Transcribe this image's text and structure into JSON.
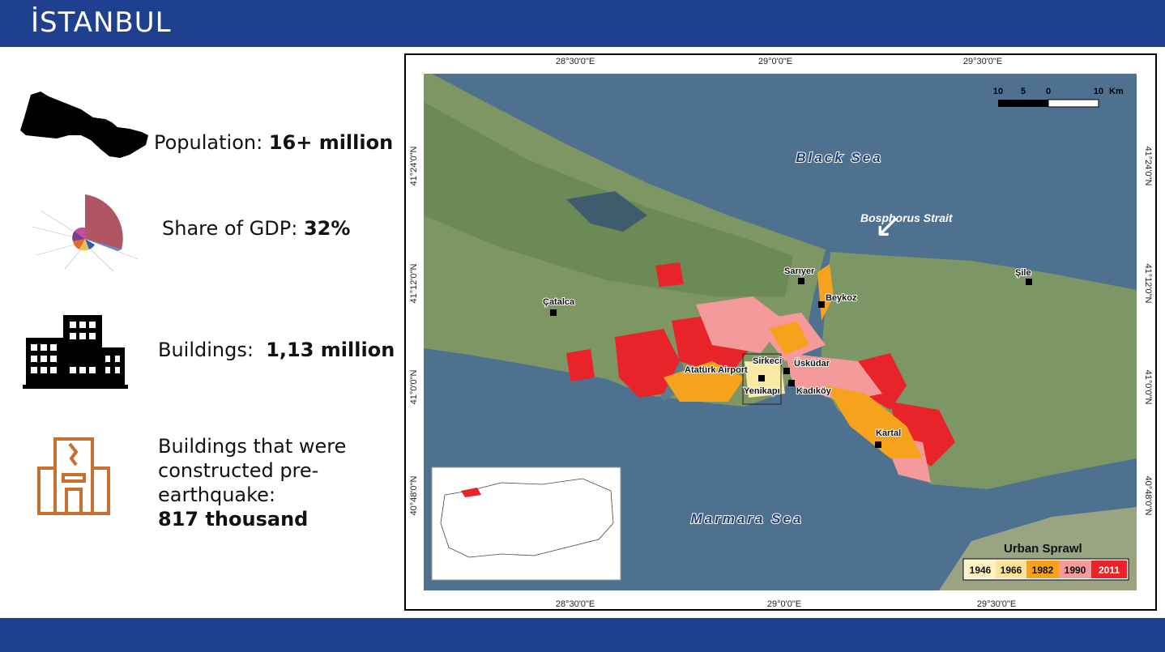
{
  "header": {
    "title": "İSTANBUL"
  },
  "stats": [
    {
      "label": "Population:",
      "value": "16+ million"
    },
    {
      "label": "Share of GDP:",
      "value": "32%"
    },
    {
      "label": "Buildings:",
      "value": "1,13 million"
    },
    {
      "label": "Buildings that were constructed pre-earthquake:",
      "value": "817 thousand"
    }
  ],
  "map": {
    "lon_ticks": [
      "28°30'0\"E",
      "29°0'0\"E",
      "29°30'0\"E"
    ],
    "lat_ticks": [
      "41°24'0\"N",
      "41°12'0\"N",
      "41°0'0\"N",
      "40°48'0\"N"
    ],
    "seas": [
      "Black Sea",
      "Marmara Sea"
    ],
    "strait": "Bosphorus Strait",
    "places": [
      "Çatalca",
      "Sarıyer",
      "Beykoz",
      "Şile",
      "Sirkeci",
      "Üsküdar",
      "Atatürk Airport",
      "Yenikapı",
      "Kadıköy",
      "Kartal"
    ],
    "scale": {
      "labels": [
        "10",
        "5",
        "0",
        "10"
      ],
      "unit": "Km"
    },
    "legend": {
      "title": "Urban Sprawl",
      "years": [
        "1946",
        "1966",
        "1982",
        "1990",
        "2011"
      ]
    }
  }
}
